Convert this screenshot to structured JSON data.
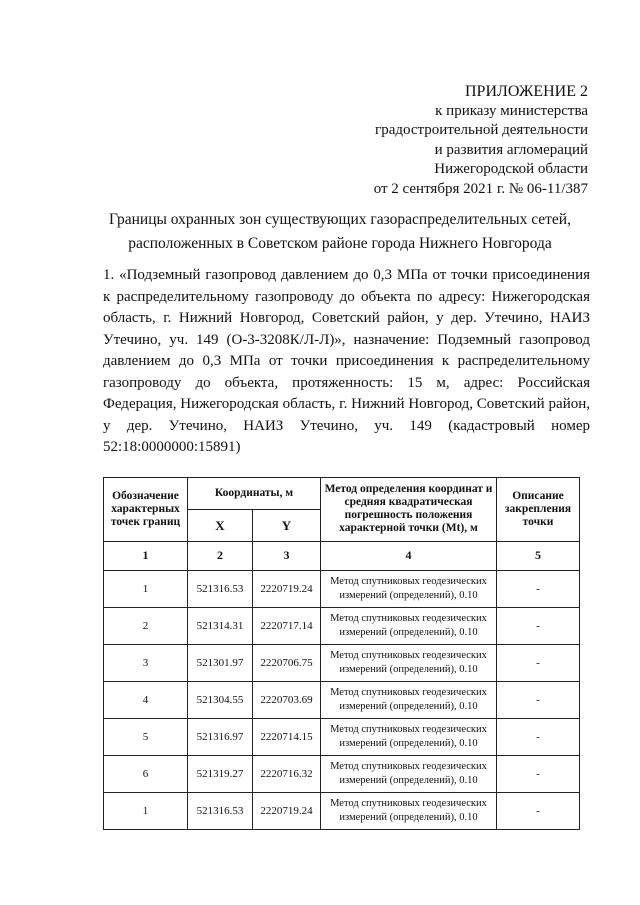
{
  "header": {
    "appendix": "ПРИЛОЖЕНИЕ 2",
    "lines": [
      "к приказу министерства",
      "градостроительной деятельности",
      "и развития агломераций",
      "Нижегородской области",
      "от 2 сентября 2021 г. № 06-11/387"
    ]
  },
  "title": [
    "Границы охранных зон существующих газораспределительных сетей,",
    "расположенных в Советском районе города Нижнего Новгорода"
  ],
  "paragraph": "1. «Подземный газопровод давлением до 0,3 МПа от точки присоединения к распределительному газопроводу до объекта по адресу: Нижегородская область, г. Нижний Новгород, Советский район, у дер. Утечино, НАИЗ Утечино, уч. 149 (О-3-3208К/Л-Л)», назначение: Подземный газопровод давлением до 0,3 МПа от точки присоединения к распределительному газопроводу до объекта, протяженность: 15 м, адрес: Российская Федерация, Нижегородская область, г. Нижний Новгород, Советский район, у дер. Утечино, НАИЗ Утечино, уч. 149 (кадастровый номер 52:18:0000000:15891)",
  "table": {
    "headers": {
      "point": "Обозначение характерных точек границ",
      "coords": "Координаты, м",
      "x": "X",
      "y": "Y",
      "method": "Метод определения координат и средняя квадратическая погрешность положения характерной точки (Mt), м",
      "description": "Описание закрепления точки"
    },
    "column_numbers": [
      "1",
      "2",
      "3",
      "4",
      "5"
    ],
    "rows": [
      {
        "point": "1",
        "x": "521316.53",
        "y": "2220719.24",
        "method": "Метод спутниковых геодезических измерений (определений), 0.10",
        "desc": "-"
      },
      {
        "point": "2",
        "x": "521314.31",
        "y": "2220717.14",
        "method": "Метод спутниковых геодезических измерений (определений), 0.10",
        "desc": "-"
      },
      {
        "point": "3",
        "x": "521301.97",
        "y": "2220706.75",
        "method": "Метод спутниковых геодезических измерений (определений), 0.10",
        "desc": "-"
      },
      {
        "point": "4",
        "x": "521304.55",
        "y": "2220703.69",
        "method": "Метод спутниковых геодезических измерений (определений), 0.10",
        "desc": "-"
      },
      {
        "point": "5",
        "x": "521316.97",
        "y": "2220714.15",
        "method": "Метод спутниковых геодезических измерений (определений), 0.10",
        "desc": "-"
      },
      {
        "point": "6",
        "x": "521319.27",
        "y": "2220716.32",
        "method": "Метод спутниковых геодезических измерений (определений), 0.10",
        "desc": "-"
      },
      {
        "point": "1",
        "x": "521316.53",
        "y": "2220719.24",
        "method": "Метод спутниковых геодезических измерений (определений), 0.10",
        "desc": "-"
      }
    ]
  }
}
